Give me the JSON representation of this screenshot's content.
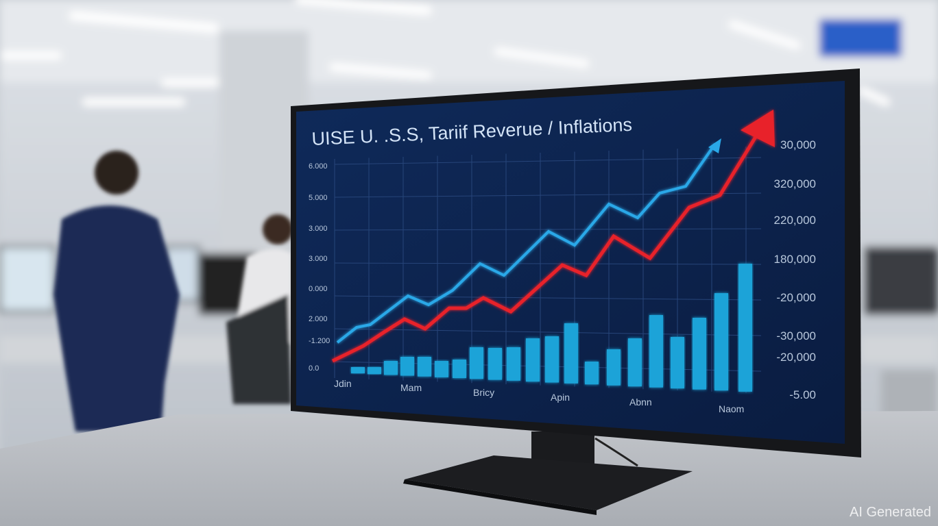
{
  "screen": {
    "title": "UISE U. .S.S, Tariif Reverue / Inflations",
    "left_axis_labels": [
      "6.000",
      "5.000",
      "3.000",
      "3.000",
      "0.000",
      "2.000",
      "-1.200",
      "0.0"
    ],
    "right_axis_labels": [
      "30,000",
      "320,000",
      "220,000",
      "180,000",
      "-20,000",
      "-30,000",
      "-20,000",
      "-5.00"
    ],
    "x_labels": [
      "Jdin",
      "Mam",
      "Bricy",
      "Apin",
      "Abnn",
      "Naom"
    ],
    "colors": {
      "background": "#0d1f45",
      "blue_line": "#2aa8e8",
      "red_line": "#e8202a",
      "bars": "#1fa3d8"
    }
  },
  "watermark": "AI Generated"
}
